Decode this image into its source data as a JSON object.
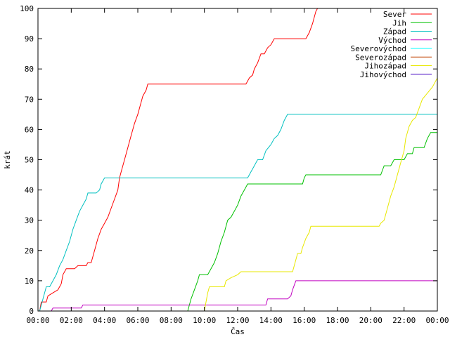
{
  "chart_data": {
    "type": "line",
    "title": "",
    "xlabel": "Čas",
    "ylabel": "krát",
    "xlim": [
      0,
      24
    ],
    "ylim": [
      0,
      100
    ],
    "x_ticks": [
      {
        "value": 0,
        "label": "00:00"
      },
      {
        "value": 2,
        "label": "02:00"
      },
      {
        "value": 4,
        "label": "04:00"
      },
      {
        "value": 6,
        "label": "06:00"
      },
      {
        "value": 8,
        "label": "08:00"
      },
      {
        "value": 10,
        "label": "10:00"
      },
      {
        "value": 12,
        "label": "12:00"
      },
      {
        "value": 14,
        "label": "14:00"
      },
      {
        "value": 16,
        "label": "16:00"
      },
      {
        "value": 18,
        "label": "18:00"
      },
      {
        "value": 20,
        "label": "20:00"
      },
      {
        "value": 22,
        "label": "22:00"
      },
      {
        "value": 24,
        "label": "00:00"
      }
    ],
    "y_ticks": [
      {
        "value": 0,
        "label": "0"
      },
      {
        "value": 10,
        "label": "10"
      },
      {
        "value": 20,
        "label": "20"
      },
      {
        "value": 30,
        "label": "30"
      },
      {
        "value": 40,
        "label": "40"
      },
      {
        "value": 50,
        "label": "50"
      },
      {
        "value": 60,
        "label": "60"
      },
      {
        "value": 70,
        "label": "70"
      },
      {
        "value": 80,
        "label": "80"
      },
      {
        "value": 90,
        "label": "90"
      },
      {
        "value": 100,
        "label": "100"
      }
    ],
    "grid": false,
    "legend_position": "top-right",
    "series": [
      {
        "name": "Sever",
        "color": "#ff0000",
        "points": [
          [
            0,
            0
          ],
          [
            0.1,
            0
          ],
          [
            0.2,
            3
          ],
          [
            0.5,
            3
          ],
          [
            0.6,
            5
          ],
          [
            0.9,
            6
          ],
          [
            1.2,
            7
          ],
          [
            1.4,
            9
          ],
          [
            1.5,
            12
          ],
          [
            1.7,
            14
          ],
          [
            2.2,
            14
          ],
          [
            2.4,
            15
          ],
          [
            2.9,
            15
          ],
          [
            3.0,
            16
          ],
          [
            3.2,
            16
          ],
          [
            3.4,
            20
          ],
          [
            3.6,
            24
          ],
          [
            3.8,
            27
          ],
          [
            4.0,
            29
          ],
          [
            4.2,
            31
          ],
          [
            4.4,
            34
          ],
          [
            4.6,
            37
          ],
          [
            4.8,
            40
          ],
          [
            4.9,
            44
          ],
          [
            5.0,
            46
          ],
          [
            5.2,
            50
          ],
          [
            5.4,
            54
          ],
          [
            5.6,
            58
          ],
          [
            5.8,
            62
          ],
          [
            6.0,
            65
          ],
          [
            6.2,
            69
          ],
          [
            6.3,
            71
          ],
          [
            6.5,
            73
          ],
          [
            6.6,
            75
          ],
          [
            12.5,
            75
          ],
          [
            12.6,
            76
          ],
          [
            12.7,
            77
          ],
          [
            12.9,
            78
          ],
          [
            13.0,
            80
          ],
          [
            13.2,
            82
          ],
          [
            13.4,
            85
          ],
          [
            13.6,
            85
          ],
          [
            13.8,
            87
          ],
          [
            14.0,
            88
          ],
          [
            14.2,
            90
          ],
          [
            15.5,
            90
          ],
          [
            16.1,
            90
          ],
          [
            16.3,
            92
          ],
          [
            16.5,
            95
          ],
          [
            16.7,
            99
          ],
          [
            16.8,
            100
          ]
        ]
      },
      {
        "name": "Jih",
        "color": "#00c000",
        "points": [
          [
            0,
            0
          ],
          [
            9.0,
            0
          ],
          [
            9.2,
            4
          ],
          [
            9.4,
            7
          ],
          [
            9.6,
            10
          ],
          [
            9.7,
            12
          ],
          [
            10.2,
            12
          ],
          [
            10.4,
            14
          ],
          [
            10.6,
            16
          ],
          [
            10.8,
            19
          ],
          [
            11.0,
            23
          ],
          [
            11.2,
            26
          ],
          [
            11.4,
            30
          ],
          [
            11.6,
            31
          ],
          [
            11.8,
            33
          ],
          [
            12.0,
            35
          ],
          [
            12.2,
            38
          ],
          [
            12.4,
            40
          ],
          [
            12.6,
            42
          ],
          [
            15.9,
            42
          ],
          [
            16.0,
            44
          ],
          [
            16.1,
            45
          ],
          [
            20.6,
            45
          ],
          [
            20.8,
            48
          ],
          [
            21.2,
            48
          ],
          [
            21.4,
            50
          ],
          [
            22.0,
            50
          ],
          [
            22.2,
            52
          ],
          [
            22.5,
            52
          ],
          [
            22.6,
            54
          ],
          [
            23.2,
            54
          ],
          [
            23.4,
            57
          ],
          [
            23.6,
            59
          ],
          [
            24.0,
            59
          ]
        ]
      },
      {
        "name": "Západ",
        "color": "#00c0c0",
        "points": [
          [
            0,
            0
          ],
          [
            0.1,
            0
          ],
          [
            0.3,
            4
          ],
          [
            0.5,
            8
          ],
          [
            0.7,
            8
          ],
          [
            0.9,
            10
          ],
          [
            1.1,
            12
          ],
          [
            1.3,
            15
          ],
          [
            1.5,
            17
          ],
          [
            1.7,
            20
          ],
          [
            1.9,
            23
          ],
          [
            2.1,
            27
          ],
          [
            2.3,
            30
          ],
          [
            2.5,
            33
          ],
          [
            2.7,
            35
          ],
          [
            2.9,
            37
          ],
          [
            3.0,
            39
          ],
          [
            3.5,
            39
          ],
          [
            3.7,
            40
          ],
          [
            3.8,
            42
          ],
          [
            3.9,
            43
          ],
          [
            4.0,
            44
          ],
          [
            12.6,
            44
          ],
          [
            12.8,
            46
          ],
          [
            13.0,
            48
          ],
          [
            13.2,
            50
          ],
          [
            13.5,
            50
          ],
          [
            13.7,
            53
          ],
          [
            14.0,
            55
          ],
          [
            14.2,
            57
          ],
          [
            14.4,
            58
          ],
          [
            14.6,
            60
          ],
          [
            14.8,
            63
          ],
          [
            15.0,
            65
          ],
          [
            24.0,
            65
          ]
        ]
      },
      {
        "name": "Východ",
        "color": "#c000c0",
        "points": [
          [
            0,
            0
          ],
          [
            0.8,
            0
          ],
          [
            0.9,
            1
          ],
          [
            2.6,
            1
          ],
          [
            2.7,
            2
          ],
          [
            13.7,
            2
          ],
          [
            13.8,
            4
          ],
          [
            15.0,
            4
          ],
          [
            15.2,
            5
          ],
          [
            15.3,
            7
          ],
          [
            15.5,
            10
          ],
          [
            24.0,
            10
          ]
        ]
      },
      {
        "name": "Severovýchod",
        "color": "#00ffff",
        "points": []
      },
      {
        "name": "Severozápad",
        "color": "#c04000",
        "points": []
      },
      {
        "name": "Jihozápad",
        "color": "#e8e800",
        "points": [
          [
            0,
            0
          ],
          [
            10.0,
            0
          ],
          [
            10.1,
            3
          ],
          [
            10.2,
            6
          ],
          [
            10.3,
            8
          ],
          [
            11.2,
            8
          ],
          [
            11.3,
            10
          ],
          [
            11.6,
            11
          ],
          [
            12.0,
            12
          ],
          [
            12.2,
            13
          ],
          [
            15.3,
            13
          ],
          [
            15.4,
            15
          ],
          [
            15.6,
            19
          ],
          [
            15.8,
            19
          ],
          [
            15.9,
            21
          ],
          [
            16.1,
            24
          ],
          [
            16.3,
            26
          ],
          [
            16.4,
            28
          ],
          [
            20.5,
            28
          ],
          [
            20.6,
            29
          ],
          [
            20.8,
            30
          ],
          [
            21.0,
            34
          ],
          [
            21.2,
            38
          ],
          [
            21.4,
            41
          ],
          [
            21.6,
            45
          ],
          [
            21.8,
            49
          ],
          [
            22.0,
            53
          ],
          [
            22.1,
            57
          ],
          [
            22.3,
            61
          ],
          [
            22.5,
            63
          ],
          [
            22.7,
            64
          ],
          [
            22.9,
            67
          ],
          [
            23.1,
            70
          ],
          [
            23.4,
            72
          ],
          [
            23.7,
            74
          ],
          [
            24.0,
            77
          ]
        ]
      },
      {
        "name": "Jihovýchod",
        "color": "#4000c0",
        "points": []
      }
    ]
  }
}
